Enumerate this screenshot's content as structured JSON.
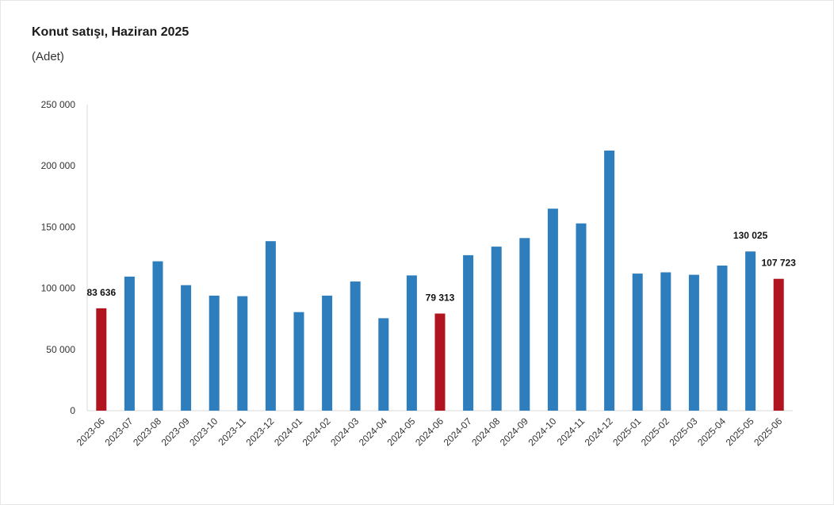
{
  "title": "Konut satışı, Haziran 2025",
  "subtitle": "(Adet)",
  "chart_data": {
    "type": "bar",
    "title": "Konut satışı, Haziran 2025",
    "subtitle": "(Adet)",
    "xlabel": "",
    "ylabel": "",
    "ylim": [
      0,
      250000
    ],
    "yticks": [
      0,
      50000,
      100000,
      150000,
      200000,
      250000
    ],
    "ytick_labels": [
      "0",
      "50 000",
      "100 000",
      "150 000",
      "200 000",
      "250 000"
    ],
    "grid": false,
    "categories": [
      "2023-06",
      "2023-07",
      "2023-08",
      "2023-09",
      "2023-10",
      "2023-11",
      "2023-12",
      "2024-01",
      "2024-02",
      "2024-03",
      "2024-04",
      "2024-05",
      "2024-06",
      "2024-07",
      "2024-08",
      "2024-09",
      "2024-10",
      "2024-11",
      "2024-12",
      "2025-01",
      "2025-02",
      "2025-03",
      "2025-04",
      "2025-05",
      "2025-06"
    ],
    "values": [
      83636,
      109500,
      122000,
      102500,
      94000,
      93500,
      138500,
      80500,
      94000,
      105500,
      75500,
      110500,
      79313,
      127000,
      134000,
      141000,
      165000,
      153000,
      212500,
      112000,
      113000,
      111000,
      118500,
      130025,
      107723
    ],
    "highlight_indices": [
      0,
      12,
      24
    ],
    "colors": {
      "default": "#2e7ebd",
      "highlight": "#b0141e"
    },
    "data_labels": [
      {
        "index": 0,
        "text": "83 636"
      },
      {
        "index": 12,
        "text": "79 313"
      },
      {
        "index": 23,
        "text": "130 025"
      },
      {
        "index": 24,
        "text": "107 723"
      }
    ]
  }
}
